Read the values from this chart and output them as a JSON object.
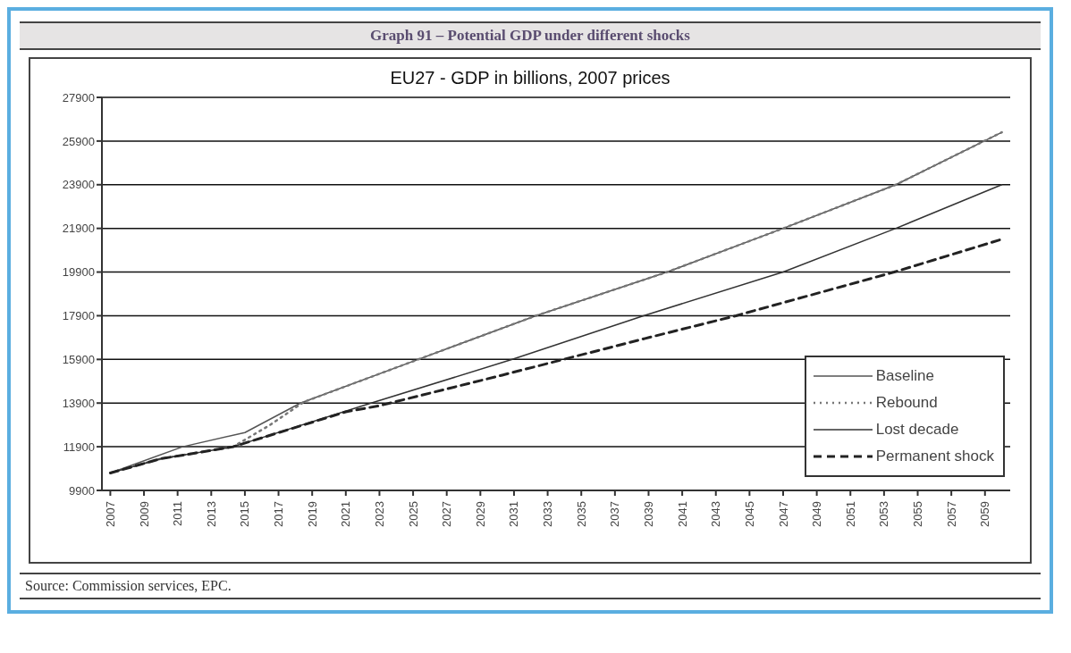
{
  "chart_data": {
    "type": "line",
    "title": "Graph 91 – Potential GDP under different shocks",
    "subtitle": "EU27 - GDP in billions, 2007 prices",
    "annotations": [
      "Source: Commission services, EPC."
    ],
    "xlim": [
      2006.5,
      2060.5
    ],
    "xticks": [
      2007,
      2009,
      2011,
      2013,
      2015,
      2017,
      2019,
      2021,
      2023,
      2025,
      2027,
      2029,
      2031,
      2033,
      2035,
      2037,
      2039,
      2041,
      2043,
      2045,
      2047,
      2049,
      2051,
      2053,
      2055,
      2057,
      2059
    ],
    "ylim": [
      9900,
      27900
    ],
    "yticks": [
      9900,
      11900,
      13900,
      15900,
      17900,
      19900,
      21900,
      23900,
      25900,
      27900
    ],
    "grid": "y",
    "legend": "bottom right",
    "marker": "none",
    "series": [
      {
        "name": "Baseline",
        "color": "#555555",
        "line_style": "solid",
        "x": [
          2007,
          2011.3,
          2015,
          2018.3,
          2025.3,
          2032.3,
          2040.1,
          2047,
          2053.7,
          2060
        ],
        "values": [
          10700,
          11900,
          12550,
          13900,
          15900,
          17900,
          19900,
          21900,
          23900,
          26300
        ]
      },
      {
        "name": "Rebound",
        "color": "#777777",
        "line_style": "dotted",
        "x": [
          2007,
          2010,
          2014.3,
          2016.5,
          2018.5,
          2025.3,
          2032.3,
          2040.1,
          2047,
          2053.7,
          2060
        ],
        "values": [
          10700,
          11350,
          11900,
          12900,
          13950,
          15900,
          17900,
          19900,
          21900,
          23900,
          26300
        ]
      },
      {
        "name": "Lost decade",
        "color": "#333333",
        "line_style": "solid",
        "x": [
          2007,
          2010,
          2014.3,
          2022.5,
          2030.9,
          2038.7,
          2047,
          2053.7,
          2060
        ],
        "values": [
          10700,
          11350,
          11900,
          13900,
          15900,
          17900,
          19900,
          21900,
          23900
        ]
      },
      {
        "name": "Permanent shock",
        "color": "#222222",
        "line_style": "dashed",
        "x": [
          2007,
          2010,
          2014.3,
          2021,
          2023,
          2030.3,
          2038.8,
          2044.2,
          2053.6,
          2060
        ],
        "values": [
          10700,
          11350,
          11900,
          13500,
          13780,
          15180,
          16860,
          17900,
          19900,
          21400
        ]
      }
    ]
  }
}
